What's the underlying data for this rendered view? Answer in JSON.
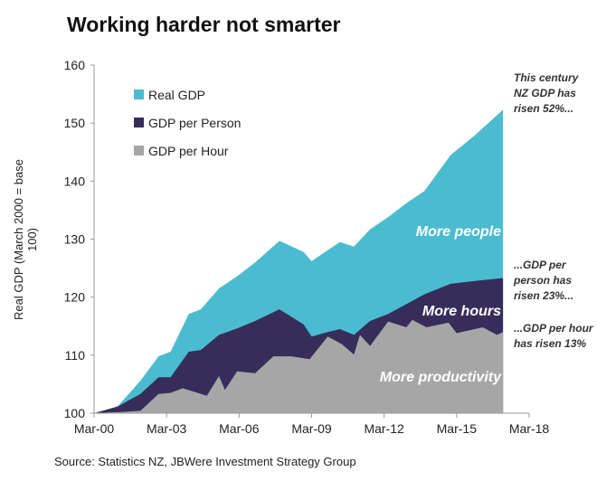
{
  "chart_data": {
    "type": "area",
    "title": "Working harder not smarter",
    "ylabel": "Real GDP (March 2000 = base 100)",
    "xlabel": "",
    "ylim": [
      100,
      160
    ],
    "yticks": [
      100,
      110,
      120,
      130,
      140,
      150,
      160
    ],
    "xlim": [
      "2000-03",
      "2018-03"
    ],
    "xticks": [
      {
        "date": "2000-03",
        "label": "Mar-00"
      },
      {
        "date": "2003-03",
        "label": "Mar-03"
      },
      {
        "date": "2006-03",
        "label": "Mar-06"
      },
      {
        "date": "2009-03",
        "label": "Mar-09"
      },
      {
        "date": "2012-03",
        "label": "Mar-12"
      },
      {
        "date": "2015-03",
        "label": "Mar-15"
      },
      {
        "date": "2018-03",
        "label": "Mar-18"
      }
    ],
    "grid": false,
    "legend": "top-left",
    "series": [
      {
        "name": "Real GDP",
        "color": "#4bbccf",
        "x": [
          "2000-03",
          "2001-02",
          "2002-02",
          "2002-11",
          "2003-05",
          "2004-02",
          "2004-08",
          "2005-05",
          "2006-02",
          "2006-11",
          "2007-11",
          "2008-11",
          "2009-03",
          "2009-11",
          "2010-05",
          "2010-12",
          "2011-08",
          "2012-05",
          "2013-02",
          "2013-11",
          "2014-12",
          "2015-12",
          "2017-02"
        ],
        "y": [
          100,
          100.9,
          105.6,
          109.8,
          110.6,
          117.1,
          117.9,
          121.5,
          123.6,
          126,
          129.7,
          127.8,
          126.2,
          128.1,
          129.5,
          128.7,
          131.7,
          133.8,
          136.2,
          138.3,
          144.5,
          147.9,
          152.3
        ]
      },
      {
        "name": "GDP per Person",
        "color": "#372d5a",
        "x": [
          "2000-03",
          "2001-03",
          "2002-02",
          "2002-11",
          "2003-05",
          "2004-02",
          "2004-08",
          "2005-05",
          "2006-02",
          "2006-11",
          "2007-11",
          "2008-11",
          "2009-03",
          "2009-11",
          "2010-05",
          "2010-12",
          "2011-08",
          "2012-05",
          "2013-02",
          "2013-11",
          "2014-12",
          "2015-12",
          "2017-02"
        ],
        "y": [
          100,
          101.2,
          103.3,
          106.2,
          106.2,
          110.6,
          110.9,
          113.5,
          114.6,
          115.9,
          117.9,
          115.3,
          113.2,
          114,
          114.5,
          113.5,
          115.9,
          117.1,
          118.8,
          120.5,
          122.3,
          122.8,
          123.3
        ]
      },
      {
        "name": "GDP per Hour",
        "color": "#a6a6a6",
        "x": [
          "2000-03",
          "2001-04",
          "2002-02",
          "2002-11",
          "2003-05",
          "2003-11",
          "2004-11",
          "2005-05",
          "2005-08",
          "2006-02",
          "2006-11",
          "2007-08",
          "2008-05",
          "2009-02",
          "2009-11",
          "2010-06",
          "2010-12",
          "2011-03",
          "2011-08",
          "2012-05",
          "2013-02",
          "2013-05",
          "2013-12",
          "2014-11",
          "2015-03",
          "2016-04",
          "2016-11",
          "2017-02"
        ],
        "y": [
          100,
          100.2,
          100.4,
          103.3,
          103.5,
          104.3,
          103,
          106.4,
          104,
          107.2,
          106.9,
          109.8,
          109.8,
          109.3,
          113.2,
          111.9,
          110.1,
          113.5,
          111.6,
          115.8,
          114.8,
          116.1,
          114.8,
          115.6,
          113.8,
          114.8,
          113.5,
          114
        ]
      }
    ],
    "area_labels": [
      "More people",
      "More hours",
      "More productivity"
    ],
    "annotations": [
      "This century NZ GDP has risen 52%...",
      "...GDP per person has risen 23%...",
      "...GDP per hour has risen 13%"
    ],
    "source": "Source: Statistics NZ, JBWere Investment Strategy Group"
  }
}
